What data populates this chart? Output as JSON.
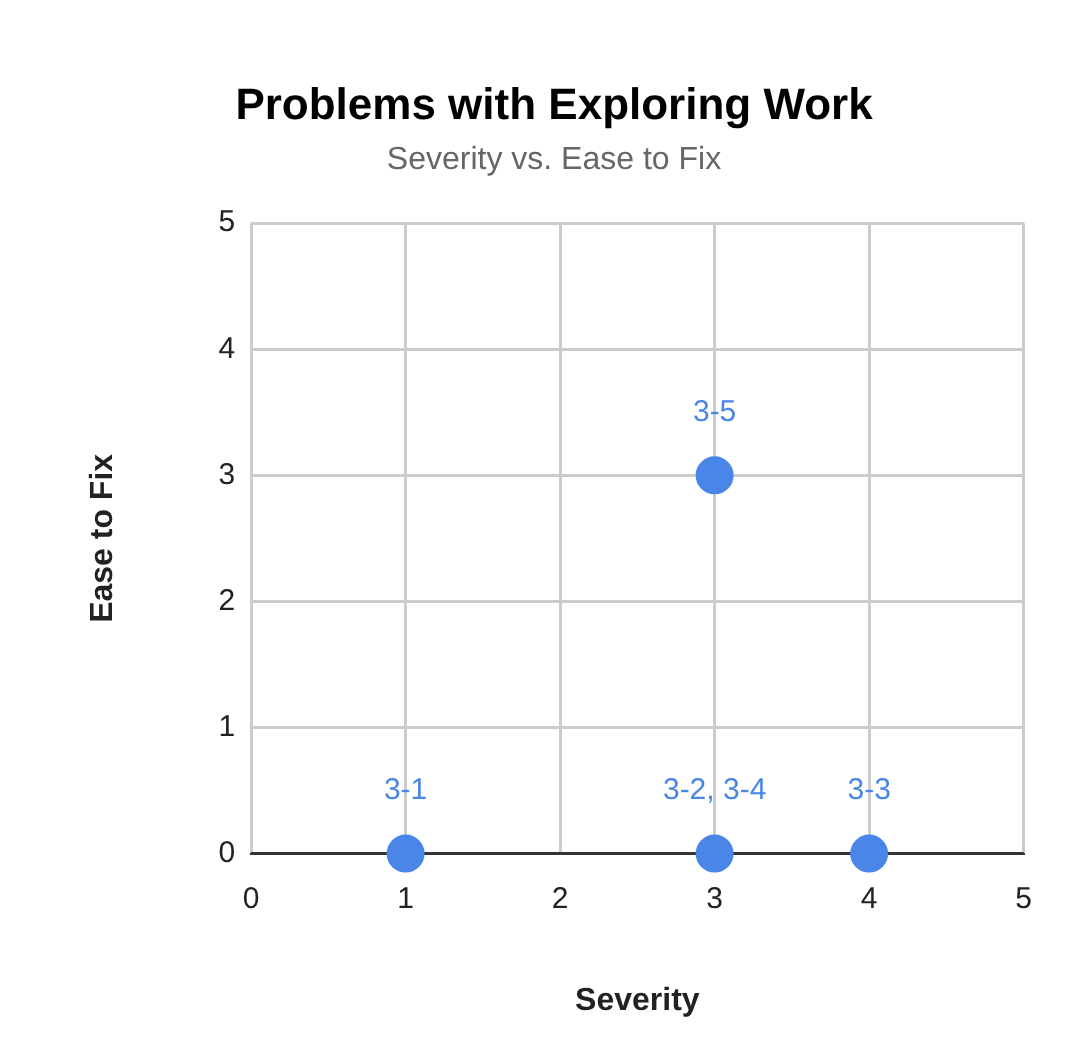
{
  "chart_data": {
    "type": "scatter",
    "title": "Problems with Exploring Work",
    "subtitle": "Severity vs. Ease to Fix",
    "xlabel": "Severity",
    "ylabel": "Ease to Fix",
    "x": [
      1,
      3,
      4,
      3
    ],
    "series": [
      {
        "color": "#4a86e8",
        "values": [
          0,
          0,
          0,
          3
        ]
      }
    ],
    "xlim": [
      0,
      5
    ],
    "xticks": [
      0,
      1,
      2,
      3,
      4,
      5
    ],
    "ylim": [
      0,
      5
    ],
    "yticks": [
      0,
      1,
      2,
      3,
      4,
      5
    ],
    "grid": true,
    "marker": "circle",
    "annotations": [
      {
        "text": "3-1",
        "x": 1,
        "y": 0
      },
      {
        "text": "3-2, 3-4",
        "x": 3,
        "y": 0
      },
      {
        "text": "3-3",
        "x": 4,
        "y": 0
      },
      {
        "text": "3-5",
        "x": 3,
        "y": 3
      }
    ]
  }
}
